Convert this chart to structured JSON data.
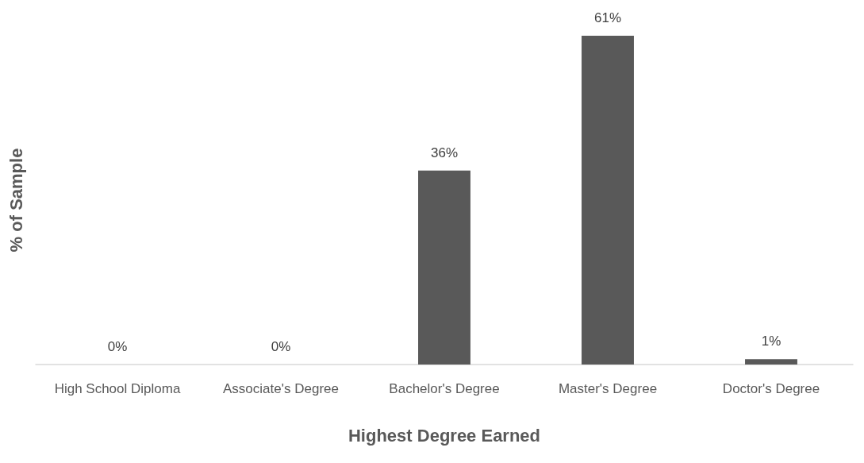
{
  "chart_data": {
    "type": "bar",
    "xlabel": "Highest Degree Earned",
    "ylabel": "% of Sample",
    "categories": [
      "High School Diploma",
      "Associate's Degree",
      "Bachelor's Degree",
      "Master's Degree",
      "Doctor's Degree"
    ],
    "values": [
      0,
      0,
      36,
      61,
      1
    ],
    "value_labels": [
      "0%",
      "0%",
      "36%",
      "61%",
      "1%"
    ],
    "color": "#595959",
    "grid": false
  }
}
